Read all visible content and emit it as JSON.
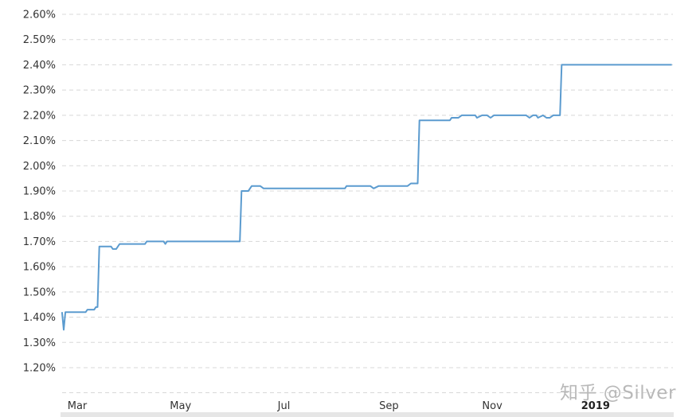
{
  "chart_data": {
    "type": "line",
    "title": "",
    "xlabel": "",
    "ylabel": "",
    "ylim": [
      1.1,
      2.6
    ],
    "grid": true,
    "y_ticks": [
      "1.20%",
      "1.30%",
      "1.40%",
      "1.50%",
      "1.60%",
      "1.70%",
      "1.80%",
      "1.90%",
      "2.00%",
      "2.10%",
      "2.20%",
      "2.30%",
      "2.40%",
      "2.50%",
      "2.60%"
    ],
    "y_tick_values": [
      1.2,
      1.3,
      1.4,
      1.5,
      1.6,
      1.7,
      1.8,
      1.9,
      2.0,
      2.1,
      2.2,
      2.3,
      2.4,
      2.5,
      2.6
    ],
    "x_ticks": [
      {
        "label": "Mar",
        "date": "2018-03-01",
        "bold": false
      },
      {
        "label": "May",
        "date": "2018-05-01",
        "bold": false
      },
      {
        "label": "Jul",
        "date": "2018-07-01",
        "bold": false
      },
      {
        "label": "Sep",
        "date": "2018-09-01",
        "bold": false
      },
      {
        "label": "Nov",
        "date": "2018-11-01",
        "bold": false
      },
      {
        "label": "2019",
        "date": "2019-01-01",
        "bold": true
      }
    ],
    "series": [
      {
        "color": "#5b9bcf",
        "points": [
          [
            "2018-02-28",
            1.42
          ],
          [
            "2018-03-01",
            1.35
          ],
          [
            "2018-03-02",
            1.42
          ],
          [
            "2018-03-14",
            1.42
          ],
          [
            "2018-03-15",
            1.43
          ],
          [
            "2018-03-19",
            1.43
          ],
          [
            "2018-03-20",
            1.44
          ],
          [
            "2018-03-21",
            1.44
          ],
          [
            "2018-03-22",
            1.68
          ],
          [
            "2018-03-29",
            1.68
          ],
          [
            "2018-03-30",
            1.67
          ],
          [
            "2018-04-01",
            1.67
          ],
          [
            "2018-04-03",
            1.69
          ],
          [
            "2018-04-18",
            1.69
          ],
          [
            "2018-04-19",
            1.7
          ],
          [
            "2018-04-29",
            1.7
          ],
          [
            "2018-04-30",
            1.69
          ],
          [
            "2018-05-01",
            1.7
          ],
          [
            "2018-06-13",
            1.7
          ],
          [
            "2018-06-14",
            1.9
          ],
          [
            "2018-06-18",
            1.9
          ],
          [
            "2018-06-20",
            1.92
          ],
          [
            "2018-06-25",
            1.92
          ],
          [
            "2018-06-27",
            1.91
          ],
          [
            "2018-08-14",
            1.91
          ],
          [
            "2018-08-15",
            1.92
          ],
          [
            "2018-08-29",
            1.92
          ],
          [
            "2018-08-31",
            1.91
          ],
          [
            "2018-09-03",
            1.92
          ],
          [
            "2018-09-20",
            1.92
          ],
          [
            "2018-09-22",
            1.93
          ],
          [
            "2018-09-26",
            1.93
          ],
          [
            "2018-09-27",
            2.18
          ],
          [
            "2018-10-15",
            2.18
          ],
          [
            "2018-10-16",
            2.19
          ],
          [
            "2018-10-20",
            2.19
          ],
          [
            "2018-10-22",
            2.2
          ],
          [
            "2018-10-30",
            2.2
          ],
          [
            "2018-10-31",
            2.19
          ],
          [
            "2018-11-03",
            2.2
          ],
          [
            "2018-11-06",
            2.2
          ],
          [
            "2018-11-08",
            2.19
          ],
          [
            "2018-11-10",
            2.2
          ],
          [
            "2018-11-29",
            2.2
          ],
          [
            "2018-12-01",
            2.19
          ],
          [
            "2018-12-03",
            2.2
          ],
          [
            "2018-12-05",
            2.2
          ],
          [
            "2018-12-06",
            2.19
          ],
          [
            "2018-12-09",
            2.2
          ],
          [
            "2018-12-11",
            2.19
          ],
          [
            "2018-12-13",
            2.19
          ],
          [
            "2018-12-15",
            2.2
          ],
          [
            "2018-12-19",
            2.2
          ],
          [
            "2018-12-20",
            2.4
          ],
          [
            "2019-02-23",
            2.4
          ]
        ]
      }
    ]
  },
  "watermark": "知乎 @Silver"
}
